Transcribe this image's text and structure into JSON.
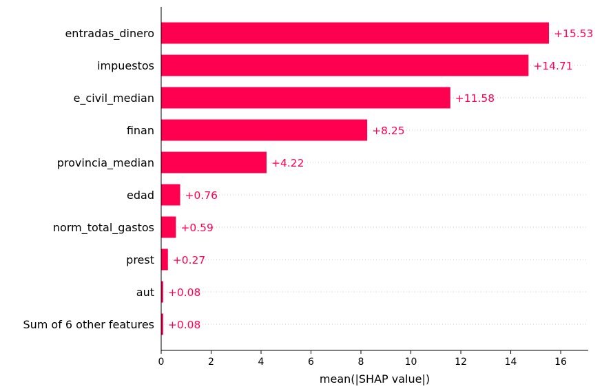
{
  "chart_data": {
    "type": "bar",
    "orientation": "horizontal",
    "categories": [
      "entradas_dinero",
      "impuestos",
      "e_civil_median",
      "finan",
      "provincia_median",
      "edad",
      "norm_total_gastos",
      "prest",
      "aut",
      "Sum of 6 other features"
    ],
    "values": [
      15.53,
      14.71,
      11.58,
      8.25,
      4.22,
      0.76,
      0.59,
      0.27,
      0.08,
      0.08
    ],
    "value_labels": [
      "+15.53",
      "+14.71",
      "+11.58",
      "+8.25",
      "+4.22",
      "+0.76",
      "+0.59",
      "+0.27",
      "+0.08",
      "+0.08"
    ],
    "xlabel": "mean(|SHAP value|)",
    "ylabel": "",
    "xlim": [
      0,
      17.1
    ],
    "xticks": [
      0,
      2,
      4,
      6,
      8,
      10,
      12,
      14,
      16
    ],
    "grid": "dotted horizontal guide per row",
    "colors": {
      "bar": "#ff0051",
      "label": "#ff0051",
      "axis": "#000000",
      "guide": "#cccccc"
    }
  }
}
